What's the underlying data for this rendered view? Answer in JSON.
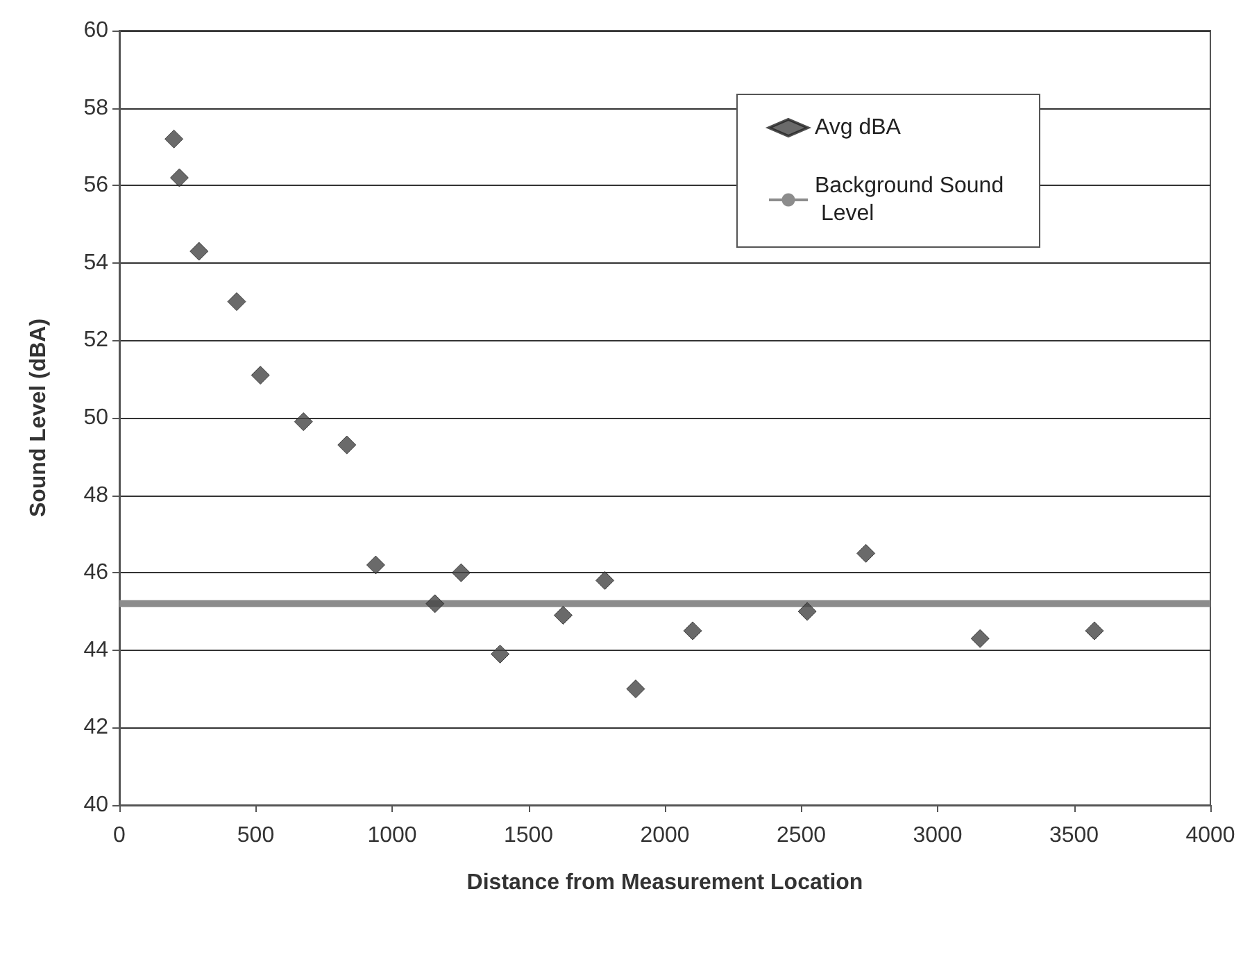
{
  "chart_data": {
    "type": "scatter",
    "xlabel": "Distance from Measurement Location",
    "ylabel": "Sound Level (dBA)",
    "xlim": [
      0,
      4000
    ],
    "xticks": [
      0,
      500,
      1000,
      1500,
      2000,
      2500,
      3000,
      3500,
      4000
    ],
    "ylim": [
      40,
      60
    ],
    "yticks": [
      40,
      42,
      44,
      46,
      48,
      50,
      52,
      54,
      56,
      58,
      60
    ],
    "grid": "y",
    "legend": "top right",
    "marker": "diamond",
    "series": [
      {
        "name": "Avg dBA",
        "color": "#454545",
        "x": [
          200,
          220,
          292,
          430,
          517,
          675,
          834,
          940,
          1157,
          1253,
          1396,
          1627,
          1780,
          1893,
          2102,
          2522,
          2737,
          3156,
          3575
        ],
        "values": [
          57.2,
          56.2,
          54.3,
          53.0,
          51.1,
          49.9,
          49.3,
          46.2,
          45.2,
          46.0,
          43.9,
          44.9,
          45.8,
          43.0,
          44.5,
          45.0,
          46.5,
          44.3,
          44.5
        ]
      },
      {
        "name": "Background Sound Level",
        "type": "line",
        "color": "#8c8c8c",
        "marker": "none",
        "x": [
          0,
          4000
        ],
        "values": [
          45.2,
          45.2
        ]
      }
    ]
  }
}
